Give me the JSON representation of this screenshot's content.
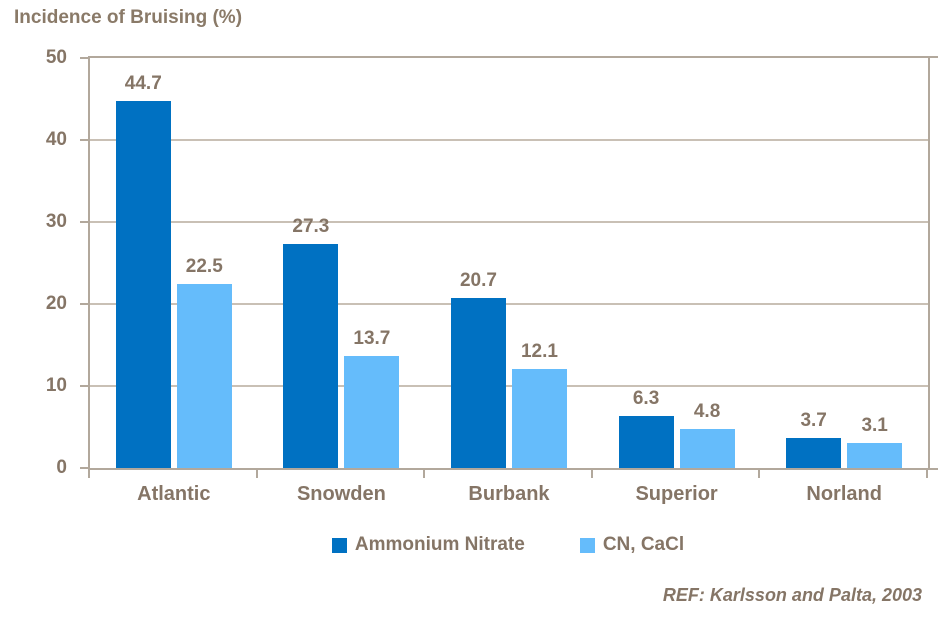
{
  "title": "Incidence of Bruising (%)",
  "footer": {
    "ref_text": "REF: Karlsson and Palta, 2003"
  },
  "colors": {
    "series1": "#0071C2",
    "series2": "#65BCFB",
    "text": "#857566",
    "axis": "#b2a89c",
    "grid": "#c9c0b5"
  },
  "chart_data": {
    "type": "bar",
    "title": "Incidence of Bruising (%)",
    "categories": [
      "Atlantic",
      "Snowden",
      "Burbank",
      "Superior",
      "Norland"
    ],
    "series": [
      {
        "name": "Ammonium Nitrate",
        "color": "#0071C2",
        "values": [
          44.7,
          27.3,
          20.7,
          6.3,
          3.7
        ]
      },
      {
        "name": "CN, CaCl",
        "color": "#65BCFB",
        "values": [
          22.5,
          13.7,
          12.1,
          4.8,
          3.1
        ]
      }
    ],
    "xlabel": "",
    "ylabel": "",
    "ylim": [
      0,
      50
    ],
    "yticks": [
      0,
      10,
      20,
      30,
      40,
      50
    ],
    "grid": true,
    "value_labels": true,
    "value_label_format": "0.1f",
    "legend_position": "bottom"
  }
}
